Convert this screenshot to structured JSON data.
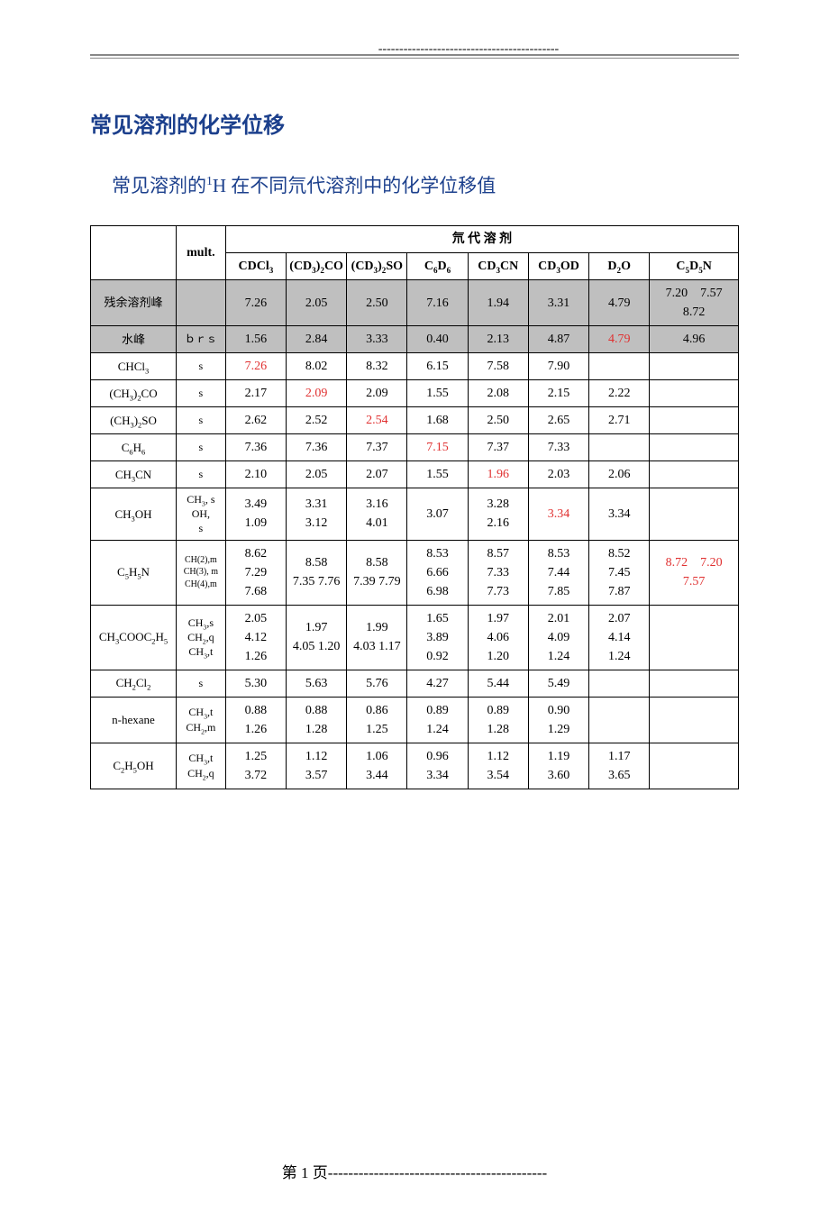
{
  "heading1": "常见溶剂的化学位移",
  "heading2_parts": [
    "常见溶剂的",
    "1",
    "H 在不同氘代溶剂中的化学位移值"
  ],
  "header": {
    "mult": "mult.",
    "group": "氘 代 溶 剂",
    "solvents_html": [
      "CDCl<sub>3</sub>",
      "(CD<sub>3</sub>)<sub>2</sub>CO",
      "(CD<sub>3</sub>)<sub>2</sub>SO",
      "C<sub>6</sub>D<sub>6</sub>",
      "CD<sub>3</sub>CN",
      "CD<sub>3</sub>OD",
      "D<sub>2</sub>O",
      "C<sub>5</sub>D<sub>5</sub>N"
    ]
  },
  "rows": [
    {
      "shaded": true,
      "compound_html": "残余溶剂峰",
      "mult_html": "",
      "cells": [
        {
          "t": "7.26"
        },
        {
          "t": "2.05"
        },
        {
          "t": "2.50"
        },
        {
          "t": "7.16"
        },
        {
          "t": "1.94"
        },
        {
          "t": "3.31"
        },
        {
          "t": "4.79"
        },
        {
          "t": "7.20　7.57　8.72"
        }
      ]
    },
    {
      "shaded": true,
      "compound_html": "水峰",
      "mult_html": "ｂｒｓ",
      "cells": [
        {
          "t": "1.56"
        },
        {
          "t": "2.84"
        },
        {
          "t": "3.33"
        },
        {
          "t": "0.40"
        },
        {
          "t": "2.13"
        },
        {
          "t": "4.87"
        },
        {
          "t": "4.79",
          "red": true
        },
        {
          "t": "4.96"
        }
      ]
    },
    {
      "compound_html": "CHCl<sub>3</sub>",
      "mult_html": "s",
      "cells": [
        {
          "t": "7.26",
          "red": true
        },
        {
          "t": "8.02"
        },
        {
          "t": "8.32"
        },
        {
          "t": "6.15"
        },
        {
          "t": "7.58"
        },
        {
          "t": "7.90"
        },
        {
          "t": ""
        },
        {
          "t": ""
        }
      ]
    },
    {
      "compound_html": "(CH<sub>3</sub>)<sub>2</sub>CO",
      "mult_html": "s",
      "cells": [
        {
          "t": "2.17"
        },
        {
          "t": "2.09",
          "red": true
        },
        {
          "t": "2.09"
        },
        {
          "t": "1.55"
        },
        {
          "t": "2.08"
        },
        {
          "t": "2.15"
        },
        {
          "t": "2.22"
        },
        {
          "t": ""
        }
      ]
    },
    {
      "compound_html": "(CH<sub>3</sub>)<sub>2</sub>SO",
      "mult_html": "s",
      "cells": [
        {
          "t": "2.62"
        },
        {
          "t": "2.52"
        },
        {
          "t": "2.54",
          "red": true
        },
        {
          "t": "1.68"
        },
        {
          "t": "2.50"
        },
        {
          "t": "2.65"
        },
        {
          "t": "2.71"
        },
        {
          "t": ""
        }
      ]
    },
    {
      "compound_html": "C<sub>6</sub>H<sub>6</sub>",
      "mult_html": "s",
      "cells": [
        {
          "t": "7.36"
        },
        {
          "t": "7.36"
        },
        {
          "t": "7.37"
        },
        {
          "t": "7.15",
          "red": true
        },
        {
          "t": "7.37"
        },
        {
          "t": "7.33"
        },
        {
          "t": ""
        },
        {
          "t": ""
        }
      ]
    },
    {
      "compound_html": "CH<sub>3</sub>CN",
      "mult_html": "s",
      "cells": [
        {
          "t": "2.10"
        },
        {
          "t": "2.05"
        },
        {
          "t": "2.07"
        },
        {
          "t": "1.55"
        },
        {
          "t": "1.96",
          "red": true
        },
        {
          "t": "2.03"
        },
        {
          "t": "2.06"
        },
        {
          "t": ""
        }
      ]
    },
    {
      "compound_html": "CH<sub>3</sub>OH",
      "mult_html": "CH<sub>3</sub>, s<br> OH, <br>s",
      "cells": [
        {
          "t": "3.49　1.09"
        },
        {
          "t": "3.31　3.12"
        },
        {
          "t": "3.16　4.01"
        },
        {
          "t": "3.07"
        },
        {
          "t": "3.28　2.16"
        },
        {
          "t": "3.34",
          "red": true
        },
        {
          "t": "3.34"
        },
        {
          "t": ""
        }
      ]
    },
    {
      "compound_html": "C<sub>5</sub>H<sub>5</sub>N",
      "mult_html": "CH(2),m CH(3), m CH(4),m",
      "mult_small": true,
      "cells": [
        {
          "t": "8.62　7.29　7.68"
        },
        {
          "t": "8.58　7.35 7.76"
        },
        {
          "t": "8.58　7.39 7.79"
        },
        {
          "t": "8.53　6.66　6.98"
        },
        {
          "t": "8.57　7.33　7.73"
        },
        {
          "t": "8.53　7.44　7.85"
        },
        {
          "t": "8.52　7.45　7.87"
        },
        {
          "t": "8.72　7.20　7.57",
          "red": true
        }
      ]
    },
    {
      "compound_html": "CH<sub>3</sub>COOC<sub>2</sub>H<sub>5</sub>",
      "mult_html": "CH<sub>3</sub>,s<br>CH<sub>2</sub>,q<br>CH<sub>3</sub>,t",
      "cells": [
        {
          "t": "2.05　4.12　1.26"
        },
        {
          "t": "1.97　4.05 1.20"
        },
        {
          "t": "1.99　4.03 1.17"
        },
        {
          "t": "1.65　3.89　0.92"
        },
        {
          "t": "1.97　4.06　1.20"
        },
        {
          "t": "2.01　4.09　1.24"
        },
        {
          "t": "2.07　4.14　1.24"
        },
        {
          "t": ""
        }
      ]
    },
    {
      "compound_html": "CH<sub>2</sub>Cl<sub>2</sub>",
      "mult_html": "s",
      "cells": [
        {
          "t": "5.30"
        },
        {
          "t": "5.63"
        },
        {
          "t": "5.76"
        },
        {
          "t": "4.27"
        },
        {
          "t": "5.44"
        },
        {
          "t": "5.49"
        },
        {
          "t": ""
        },
        {
          "t": ""
        }
      ]
    },
    {
      "compound_html": "n-hexane",
      "mult_html": "CH<sub>3</sub>,t<br>CH<sub>2</sub>,m",
      "cells": [
        {
          "t": "0.88　1.26"
        },
        {
          "t": "0.88　1.28"
        },
        {
          "t": "0.86　1.25"
        },
        {
          "t": "0.89　1.24"
        },
        {
          "t": "0.89　1.28"
        },
        {
          "t": "0.90　1.29"
        },
        {
          "t": ""
        },
        {
          "t": ""
        }
      ]
    },
    {
      "compound_html": "C<sub>2</sub>H<sub>5</sub>OH",
      "mult_html": "CH<sub>3</sub>,t<br>CH<sub>2</sub>,q",
      "cells": [
        {
          "t": "1.25　3.72"
        },
        {
          "t": "1.12　3.57"
        },
        {
          "t": "1.06　3.44"
        },
        {
          "t": "0.96　3.34"
        },
        {
          "t": "1.12　3.54"
        },
        {
          "t": "1.19　3.60"
        },
        {
          "t": "1.17　3.65"
        },
        {
          "t": ""
        }
      ]
    }
  ],
  "footer": {
    "page_label": "第 1 页",
    "dashes": "-------------------------------------------",
    "top_dashes": "-------------------------------------------"
  }
}
